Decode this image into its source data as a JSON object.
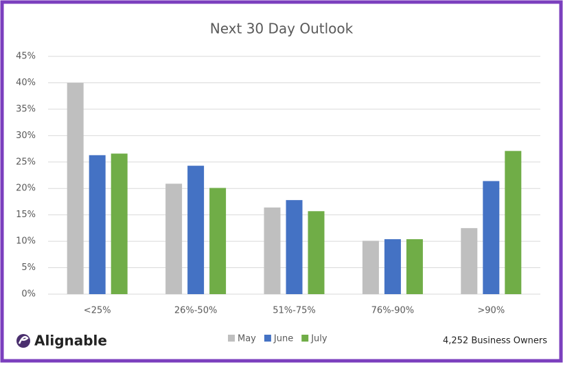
{
  "chart_data": {
    "type": "bar",
    "title": "Next 30 Day Outlook",
    "categories": [
      "<25%",
      "26%-50%",
      "51%-75%",
      "76%-90%",
      ">90%"
    ],
    "series": [
      {
        "name": "May",
        "color": "#bfbfbf",
        "values": [
          40,
          20.9,
          16.4,
          10.1,
          12.5
        ]
      },
      {
        "name": "June",
        "color": "#4472c4",
        "values": [
          26.3,
          24.3,
          17.8,
          10.4,
          21.4
        ]
      },
      {
        "name": "July",
        "color": "#70ad47",
        "values": [
          26.6,
          20.1,
          15.7,
          10.4,
          27.1
        ]
      }
    ],
    "ylim": [
      0,
      45
    ],
    "yticks": [
      {
        "value": 0,
        "label": "0%"
      },
      {
        "value": 5,
        "label": "5%"
      },
      {
        "value": 10,
        "label": "10%"
      },
      {
        "value": 15,
        "label": "15%"
      },
      {
        "value": 20,
        "label": "20%"
      },
      {
        "value": 25,
        "label": "25%"
      },
      {
        "value": 30,
        "label": "30%"
      },
      {
        "value": 35,
        "label": "35%"
      },
      {
        "value": 40,
        "label": "40%"
      },
      {
        "value": 45,
        "label": "45%"
      }
    ],
    "grid": true,
    "legend": "bottom",
    "logo": "Alignable",
    "footnote": "4,252 Business Owners"
  }
}
